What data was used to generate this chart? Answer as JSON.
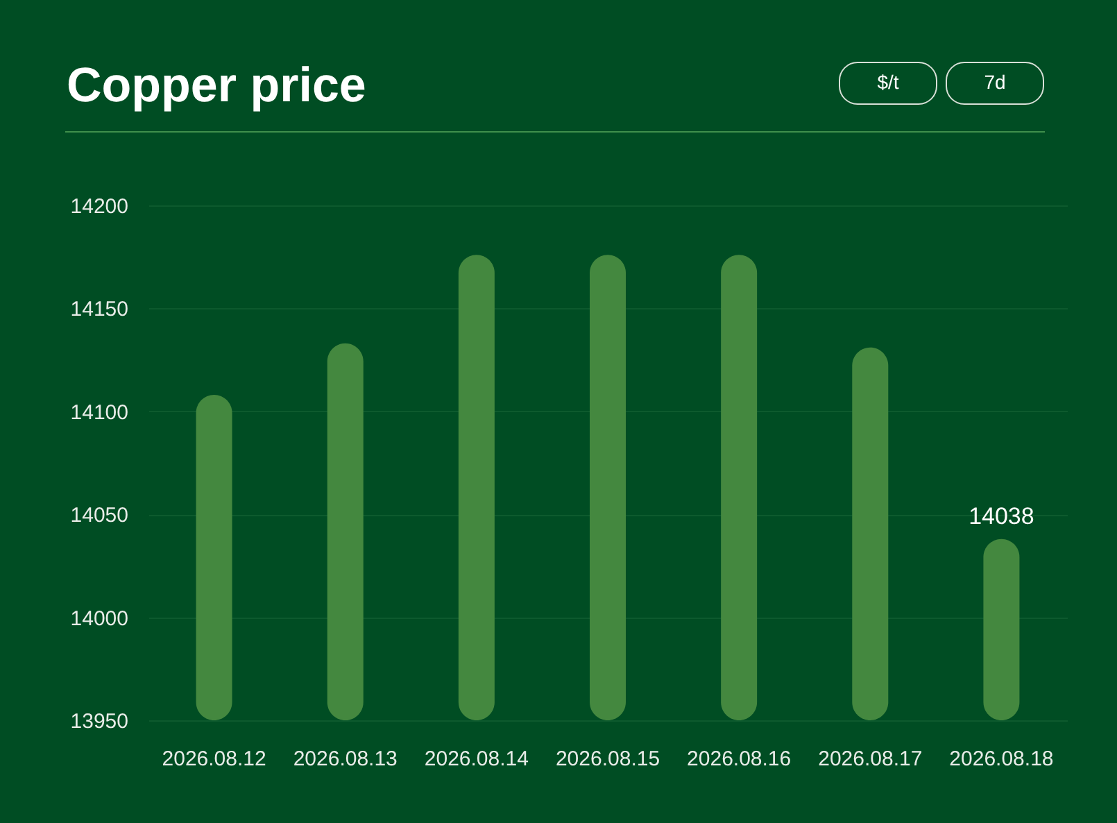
{
  "chart_data": {
    "type": "bar",
    "title": "Copper price",
    "annotations": [
      "$/t",
      "7d"
    ],
    "categories": [
      "2026.08.12",
      "2026.08.13",
      "2026.08.14",
      "2026.08.15",
      "2026.08.16",
      "2026.08.17",
      "2026.08.18"
    ],
    "values": [
      14108,
      14133,
      14176,
      14176,
      14176,
      14131,
      14038
    ],
    "color": "#44883f",
    "value_labels": [
      null,
      null,
      null,
      null,
      null,
      null,
      "14038"
    ],
    "ylim": [
      13950,
      14200
    ],
    "yticks": [
      13950,
      14000,
      14050,
      14100,
      14150,
      14200
    ],
    "grid": "y"
  }
}
